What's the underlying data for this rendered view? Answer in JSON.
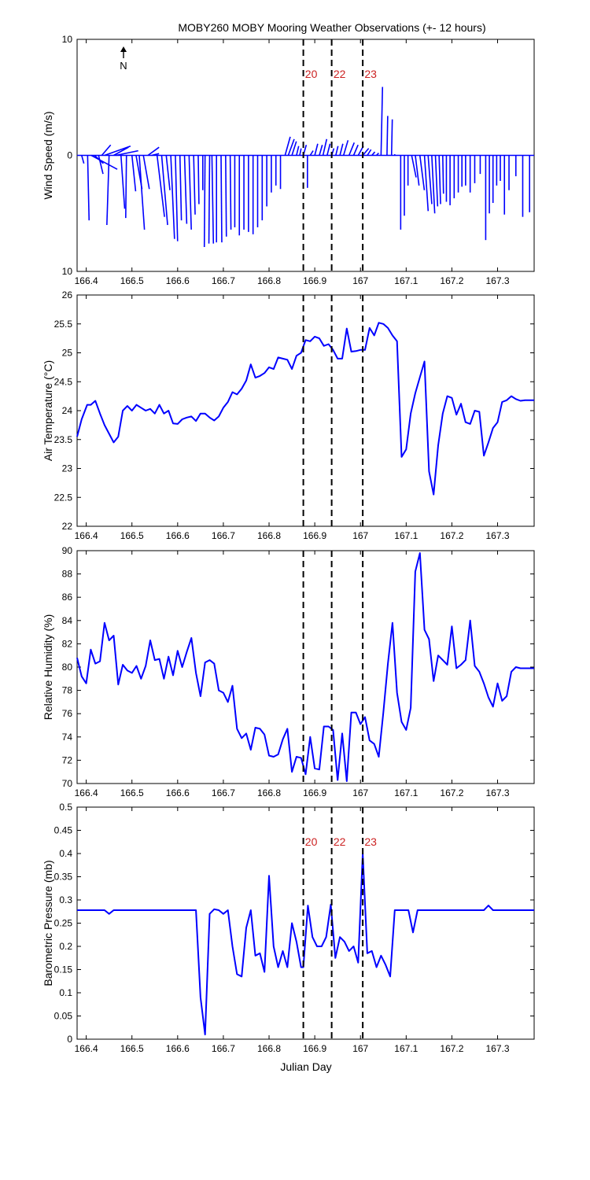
{
  "figure_title": "MOBY260 MOBY Mooring Weather Observations (+- 12 hours)",
  "x_axis_label": "Julian Day",
  "north_label": "N",
  "colors": {
    "series": "#0000ff",
    "marker": "#000000",
    "marker_label": "#cc2222"
  },
  "markers": [
    {
      "x": 166.875,
      "label": "20"
    },
    {
      "x": 166.937,
      "label": "22"
    },
    {
      "x": 167.005,
      "label": "23"
    }
  ],
  "chart_data": [
    {
      "type": "vector",
      "ylabel": "Wind Speed (m/s)",
      "xlim": [
        166.38,
        167.38
      ],
      "ylim": [
        -10,
        10
      ],
      "yticks": [
        10,
        0,
        10
      ],
      "xticks": [
        "166.4",
        "166.5",
        "166.6",
        "166.7",
        "166.8",
        "166.9",
        "167",
        "167.1",
        "167.2",
        "167.3"
      ],
      "grid": false,
      "show_marker_labels": true,
      "vectors": [
        [
          166.39,
          0.03,
          -0.7
        ],
        [
          166.403,
          0.02,
          -5.6
        ],
        [
          166.411,
          0.35,
          -1.2
        ],
        [
          166.418,
          0.12,
          -0.7
        ],
        [
          166.427,
          0.06,
          -1.6
        ],
        [
          166.434,
          0.12,
          0.9
        ],
        [
          166.44,
          0.35,
          0.8
        ],
        [
          166.45,
          -0.03,
          -6.0
        ],
        [
          166.46,
          0.2,
          0.7
        ],
        [
          166.465,
          0.3,
          0.4
        ],
        [
          166.476,
          0.05,
          -4.6
        ],
        [
          166.488,
          -0.01,
          -5.4
        ],
        [
          166.5,
          0.05,
          -3.1
        ],
        [
          166.509,
          0.08,
          -2.9
        ],
        [
          166.516,
          0.07,
          -6.4
        ],
        [
          166.525,
          0.08,
          -2.9
        ],
        [
          166.535,
          0.15,
          0.7
        ],
        [
          166.543,
          0.1,
          0.15
        ],
        [
          166.555,
          0.1,
          -5.3
        ],
        [
          166.565,
          0.08,
          -6.0
        ],
        [
          166.575,
          0.05,
          -3.0
        ],
        [
          166.585,
          0.05,
          -7.2
        ],
        [
          166.595,
          0.03,
          -7.4
        ],
        [
          166.605,
          0.02,
          -5.6
        ],
        [
          166.615,
          0.03,
          -5.9
        ],
        [
          166.625,
          0.03,
          -6.4
        ],
        [
          166.635,
          0.02,
          -5.1
        ],
        [
          166.645,
          0.01,
          -4.2
        ],
        [
          166.655,
          0.0,
          -3.0
        ],
        [
          166.66,
          -0.01,
          -7.9
        ],
        [
          166.67,
          -0.01,
          -7.6
        ],
        [
          166.675,
          0.02,
          -7.6
        ],
        [
          166.685,
          0.0,
          -7.5
        ],
        [
          166.695,
          0.01,
          -7.5
        ],
        [
          166.705,
          0.01,
          -7.0
        ],
        [
          166.715,
          0.01,
          -6.4
        ],
        [
          166.725,
          0.0,
          -6.2
        ],
        [
          166.735,
          0.0,
          -6.9
        ],
        [
          166.745,
          0.0,
          -6.4
        ],
        [
          166.755,
          0.0,
          -6.6
        ],
        [
          166.765,
          0.0,
          -6.8
        ],
        [
          166.775,
          0.0,
          -6.2
        ],
        [
          166.785,
          0.0,
          -5.6
        ],
        [
          166.795,
          0.0,
          -4.4
        ],
        [
          166.805,
          0.0,
          -3.2
        ],
        [
          166.815,
          0.0,
          -2.6
        ],
        [
          166.825,
          0.0,
          -2.9
        ],
        [
          166.835,
          0.07,
          1.6
        ],
        [
          166.842,
          0.08,
          1.4
        ],
        [
          166.85,
          0.06,
          1.2
        ],
        [
          166.86,
          0.03,
          0.8
        ],
        [
          166.867,
          0.02,
          0.6
        ],
        [
          166.875,
          0.04,
          0.9
        ],
        [
          166.884,
          0.0,
          -2.8
        ],
        [
          166.89,
          0.04,
          0.4
        ],
        [
          166.9,
          0.04,
          1.0
        ],
        [
          166.91,
          0.04,
          0.9
        ],
        [
          166.918,
          0.05,
          1.4
        ],
        [
          166.927,
          0.04,
          1.0
        ],
        [
          166.937,
          0.03,
          0.6
        ],
        [
          166.946,
          0.03,
          0.8
        ],
        [
          166.955,
          0.04,
          1.0
        ],
        [
          166.963,
          0.06,
          1.3
        ],
        [
          166.975,
          0.07,
          1.1
        ],
        [
          166.985,
          0.06,
          0.9
        ],
        [
          166.995,
          0.07,
          0.8
        ],
        [
          167.005,
          0.08,
          0.6
        ],
        [
          167.015,
          0.05,
          0.5
        ],
        [
          167.025,
          0.04,
          0.3
        ],
        [
          167.035,
          0.03,
          0.2
        ],
        [
          167.045,
          0.02,
          5.9
        ],
        [
          167.058,
          0.01,
          3.4
        ],
        [
          167.068,
          0.01,
          3.1
        ],
        [
          167.075,
          0.0,
          0.1
        ],
        [
          167.088,
          0.0,
          -6.4
        ],
        [
          167.096,
          0.0,
          -5.2
        ],
        [
          167.104,
          0.0,
          -2.6
        ],
        [
          167.112,
          0.06,
          -1.9
        ],
        [
          167.12,
          0.05,
          -2.6
        ],
        [
          167.13,
          0.06,
          -3.0
        ],
        [
          167.14,
          0.05,
          -4.8
        ],
        [
          167.148,
          0.05,
          -4.2
        ],
        [
          167.156,
          0.04,
          -5.0
        ],
        [
          167.164,
          0.03,
          -4.4
        ],
        [
          167.172,
          0.02,
          -4.2
        ],
        [
          167.18,
          0.01,
          -3.3
        ],
        [
          167.188,
          0.0,
          -4.0
        ],
        [
          167.196,
          0.0,
          -4.3
        ],
        [
          167.205,
          0.0,
          -3.7
        ],
        [
          167.214,
          0.0,
          -3.2
        ],
        [
          167.222,
          0.0,
          -2.7
        ],
        [
          167.23,
          0.0,
          -2.6
        ],
        [
          167.24,
          0.0,
          -3.2
        ],
        [
          167.25,
          0.0,
          -2.4
        ],
        [
          167.262,
          0.0,
          -1.6
        ],
        [
          167.274,
          0.0,
          -7.3
        ],
        [
          167.282,
          0.0,
          -5.0
        ],
        [
          167.29,
          0.0,
          -4.1
        ],
        [
          167.298,
          0.0,
          -2.6
        ],
        [
          167.306,
          0.0,
          -2.2
        ],
        [
          167.315,
          0.0,
          -5.1
        ],
        [
          167.325,
          0.0,
          -3.0
        ],
        [
          167.34,
          0.0,
          -1.8
        ],
        [
          167.355,
          0.0,
          -5.3
        ],
        [
          167.37,
          0.0,
          -4.9
        ]
      ]
    },
    {
      "type": "line",
      "ylabel": "Air Temperature (°C)",
      "xlim": [
        166.38,
        167.38
      ],
      "ylim": [
        22,
        26
      ],
      "yticks": [
        22,
        22.5,
        23,
        23.5,
        24,
        24.5,
        25,
        25.5,
        26
      ],
      "xticks": [
        "166.4",
        "166.5",
        "166.6",
        "166.7",
        "166.8",
        "166.9",
        "167",
        "167.1",
        "167.2",
        "167.3"
      ],
      "grid": false,
      "show_marker_labels": false,
      "x": [
        166.38,
        166.39,
        166.402,
        166.41,
        166.42,
        166.43,
        166.44,
        166.45,
        166.46,
        166.47,
        166.48,
        166.49,
        166.5,
        166.51,
        166.52,
        166.53,
        166.54,
        166.55,
        166.56,
        166.57,
        166.58,
        166.59,
        166.6,
        166.61,
        166.62,
        166.63,
        166.64,
        166.65,
        166.66,
        166.67,
        166.68,
        166.69,
        166.7,
        166.71,
        166.72,
        166.73,
        166.74,
        166.75,
        166.76,
        166.77,
        166.78,
        166.79,
        166.8,
        166.81,
        166.82,
        166.83,
        166.84,
        166.85,
        166.86,
        166.87,
        166.88,
        166.89,
        166.9,
        166.91,
        166.92,
        166.93,
        166.94,
        166.95,
        166.96,
        166.97,
        166.98,
        166.99,
        167.0,
        167.01,
        167.02,
        167.03,
        167.04,
        167.05,
        167.06,
        167.07,
        167.08,
        167.09,
        167.1,
        167.11,
        167.12,
        167.13,
        167.14,
        167.15,
        167.16,
        167.17,
        167.18,
        167.19,
        167.2,
        167.21,
        167.22,
        167.23,
        167.24,
        167.25,
        167.26,
        167.27,
        167.28,
        167.29,
        167.3,
        167.31,
        167.32,
        167.33,
        167.34,
        167.35,
        167.36,
        167.37,
        167.38
      ],
      "values": [
        23.55,
        23.85,
        24.1,
        24.1,
        24.17,
        23.95,
        23.75,
        23.6,
        23.45,
        23.55,
        24.0,
        24.08,
        24.0,
        24.1,
        24.05,
        24.0,
        24.03,
        23.95,
        24.1,
        23.95,
        24.0,
        23.78,
        23.77,
        23.85,
        23.88,
        23.9,
        23.82,
        23.95,
        23.95,
        23.88,
        23.83,
        23.9,
        24.05,
        24.15,
        24.32,
        24.28,
        24.38,
        24.52,
        24.8,
        24.57,
        24.6,
        24.65,
        24.75,
        24.72,
        24.92,
        24.9,
        24.88,
        24.72,
        24.95,
        25.0,
        25.22,
        25.2,
        25.28,
        25.25,
        25.12,
        25.15,
        25.05,
        24.9,
        24.9,
        25.42,
        25.02,
        25.03,
        25.05,
        25.05,
        25.43,
        25.3,
        25.52,
        25.5,
        25.43,
        25.3,
        25.2,
        23.2,
        23.33,
        23.95,
        24.3,
        24.58,
        24.85,
        22.95,
        22.55,
        23.4,
        23.95,
        24.25,
        24.22,
        23.93,
        24.12,
        23.8,
        23.77,
        24.0,
        23.98,
        23.22,
        23.45,
        23.7,
        23.8,
        24.15,
        24.18,
        24.25,
        24.2,
        24.17,
        24.18,
        24.18,
        24.18
      ]
    },
    {
      "type": "line",
      "ylabel": "Relative Humidity (%)",
      "xlim": [
        166.38,
        167.38
      ],
      "ylim": [
        70,
        90
      ],
      "yticks": [
        70,
        72,
        74,
        76,
        78,
        80,
        82,
        84,
        86,
        88,
        90
      ],
      "xticks": [
        "166.4",
        "166.5",
        "166.6",
        "166.7",
        "166.8",
        "166.9",
        "167",
        "167.1",
        "167.2",
        "167.3"
      ],
      "grid": false,
      "show_marker_labels": false,
      "x": [
        166.38,
        166.39,
        166.4,
        166.41,
        166.42,
        166.43,
        166.44,
        166.45,
        166.46,
        166.47,
        166.48,
        166.49,
        166.5,
        166.51,
        166.52,
        166.53,
        166.54,
        166.55,
        166.56,
        166.57,
        166.58,
        166.59,
        166.6,
        166.61,
        166.62,
        166.63,
        166.64,
        166.65,
        166.66,
        166.67,
        166.68,
        166.69,
        166.7,
        166.71,
        166.72,
        166.73,
        166.74,
        166.75,
        166.76,
        166.77,
        166.78,
        166.79,
        166.8,
        166.81,
        166.82,
        166.83,
        166.84,
        166.85,
        166.86,
        166.87,
        166.88,
        166.89,
        166.9,
        166.91,
        166.92,
        166.93,
        166.94,
        166.95,
        166.96,
        166.97,
        166.98,
        166.99,
        167.0,
        167.01,
        167.02,
        167.03,
        167.04,
        167.05,
        167.06,
        167.07,
        167.08,
        167.09,
        167.1,
        167.11,
        167.12,
        167.13,
        167.14,
        167.15,
        167.16,
        167.17,
        167.18,
        167.19,
        167.2,
        167.21,
        167.22,
        167.23,
        167.24,
        167.25,
        167.26,
        167.27,
        167.28,
        167.29,
        167.3,
        167.31,
        167.32,
        167.33,
        167.34,
        167.35,
        167.36,
        167.37,
        167.38
      ],
      "values": [
        80.8,
        79.2,
        78.6,
        81.5,
        80.3,
        80.5,
        83.8,
        82.3,
        82.7,
        78.5,
        80.2,
        79.7,
        79.5,
        80.1,
        79.0,
        80.1,
        82.3,
        80.6,
        80.7,
        79.0,
        80.9,
        79.3,
        81.4,
        80.0,
        81.3,
        82.5,
        79.5,
        77.5,
        80.4,
        80.6,
        80.3,
        78.0,
        77.8,
        77.0,
        78.4,
        74.7,
        73.9,
        74.3,
        72.9,
        74.8,
        74.7,
        74.2,
        72.4,
        72.3,
        72.5,
        73.8,
        74.7,
        71.0,
        72.3,
        72.2,
        70.8,
        74.0,
        71.3,
        71.2,
        74.9,
        74.9,
        74.6,
        70.3,
        74.3,
        70.2,
        76.1,
        76.1,
        75.1,
        75.7,
        73.7,
        73.4,
        72.3,
        76.1,
        80.3,
        83.8,
        77.8,
        75.3,
        74.6,
        76.5,
        88.2,
        89.8,
        83.2,
        82.4,
        78.8,
        81.0,
        80.6,
        80.2,
        83.5,
        79.9,
        80.2,
        80.6,
        84.0,
        80.1,
        79.6,
        78.6,
        77.4,
        76.6,
        78.6,
        77.1,
        77.5,
        79.6,
        80.0,
        79.9,
        79.9,
        79.9,
        79.9
      ]
    },
    {
      "type": "line",
      "ylabel": "Barometric Pressure (mb)",
      "xlim": [
        166.38,
        167.38
      ],
      "ylim": [
        0,
        0.5
      ],
      "yticks": [
        0,
        0.05,
        0.1,
        0.15,
        0.2,
        0.25,
        0.3,
        0.35,
        0.4,
        0.45,
        0.5
      ],
      "xticks": [
        "166.4",
        "166.5",
        "166.6",
        "166.7",
        "166.8",
        "166.9",
        "167",
        "167.1",
        "167.2",
        "167.3"
      ],
      "grid": false,
      "show_marker_labels": true,
      "x": [
        166.38,
        166.44,
        166.45,
        166.46,
        166.5,
        166.55,
        166.6,
        166.64,
        166.65,
        166.66,
        166.665,
        166.67,
        166.68,
        166.69,
        166.7,
        166.71,
        166.72,
        166.73,
        166.74,
        166.75,
        166.76,
        166.77,
        166.78,
        166.79,
        166.8,
        166.81,
        166.82,
        166.83,
        166.84,
        166.85,
        166.86,
        166.87,
        166.875,
        166.885,
        166.895,
        166.905,
        166.915,
        166.925,
        166.935,
        166.945,
        166.955,
        166.965,
        166.975,
        166.985,
        166.995,
        167.005,
        167.015,
        167.025,
        167.035,
        167.045,
        167.055,
        167.065,
        167.075,
        167.085,
        167.095,
        167.105,
        167.115,
        167.125,
        167.135,
        167.145,
        167.15,
        167.2,
        167.25,
        167.27,
        167.28,
        167.29,
        167.3,
        167.35,
        167.38
      ],
      "values": [
        0.278,
        0.278,
        0.27,
        0.278,
        0.278,
        0.278,
        0.278,
        0.278,
        0.09,
        0.01,
        0.14,
        0.27,
        0.28,
        0.278,
        0.27,
        0.278,
        0.2,
        0.14,
        0.135,
        0.24,
        0.278,
        0.18,
        0.185,
        0.145,
        0.352,
        0.2,
        0.155,
        0.19,
        0.155,
        0.25,
        0.21,
        0.155,
        0.155,
        0.288,
        0.22,
        0.2,
        0.2,
        0.22,
        0.29,
        0.175,
        0.22,
        0.21,
        0.19,
        0.2,
        0.165,
        0.4,
        0.185,
        0.19,
        0.155,
        0.18,
        0.16,
        0.135,
        0.278,
        0.278,
        0.278,
        0.278,
        0.23,
        0.278,
        0.278,
        0.278,
        0.278,
        0.278,
        0.278,
        0.278,
        0.288,
        0.278,
        0.278,
        0.278,
        0.278
      ]
    }
  ]
}
